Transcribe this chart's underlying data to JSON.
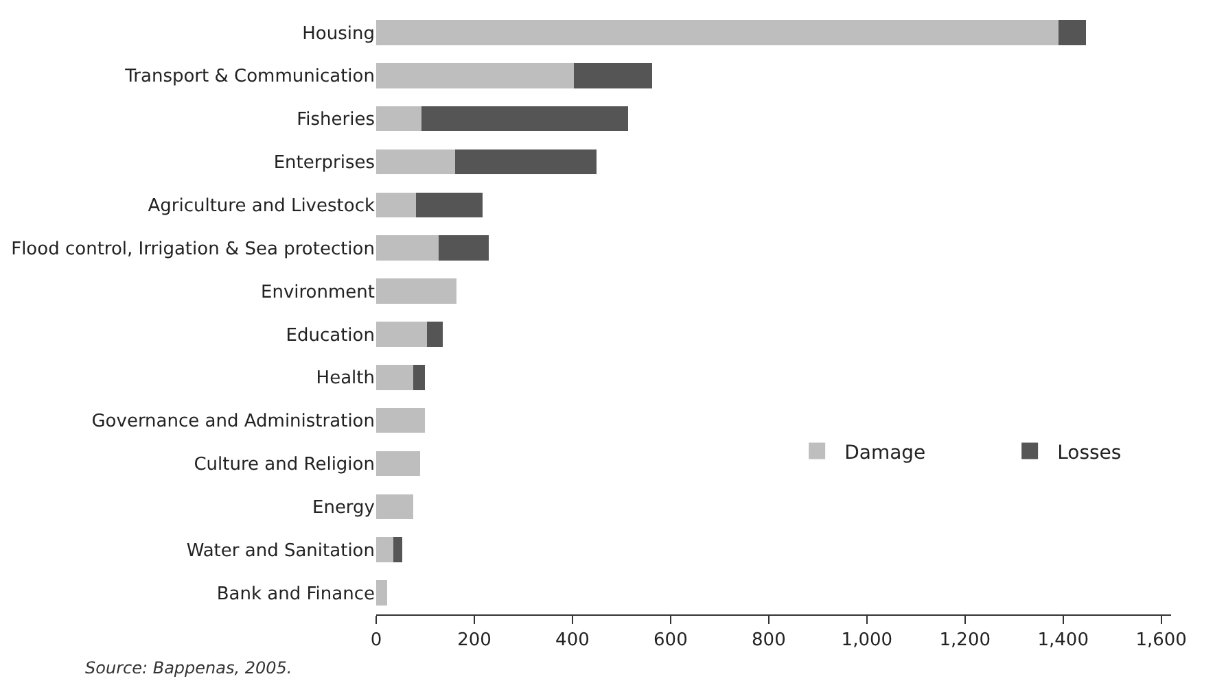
{
  "chart_data": {
    "type": "bar",
    "orientation": "horizontal",
    "stacked": true,
    "categories": [
      "Housing",
      "Transport & Communication",
      "Fisheries",
      "Enterprises",
      "Agriculture and Livestock",
      "Flood control, Irrigation & Sea protection",
      "Environment",
      "Education",
      "Health",
      "Governance and Administration",
      "Culture and Religion",
      "Energy",
      "Water and Sanitation",
      "Bank and Finance"
    ],
    "series": [
      {
        "name": "Damage",
        "color": "#bebebe",
        "values": [
          1390,
          403,
          92,
          161,
          81,
          127,
          163,
          103,
          75,
          99,
          90,
          75,
          35,
          22
        ]
      },
      {
        "name": "Losses",
        "color": "#555555",
        "values": [
          57,
          159,
          422,
          288,
          136,
          103,
          null,
          33,
          24,
          null,
          null,
          null,
          18,
          null
        ]
      }
    ],
    "xlim": [
      0,
      1620
    ],
    "xticks": [
      0,
      {
        "value": 200,
        "label": "200"
      },
      {
        "value": 400,
        "label": "400"
      },
      {
        "value": 600,
        "label": "600"
      },
      {
        "value": 800,
        "label": "800"
      },
      {
        "value": 1000,
        "label": "1,000"
      },
      {
        "value": 1200,
        "label": "1,200"
      },
      {
        "value": 1400,
        "label": "1,400"
      },
      {
        "value": 1600,
        "label": "1,600"
      }
    ],
    "legend": "bottom right",
    "annotations": [
      "Source: Bappenas, 2005."
    ]
  }
}
